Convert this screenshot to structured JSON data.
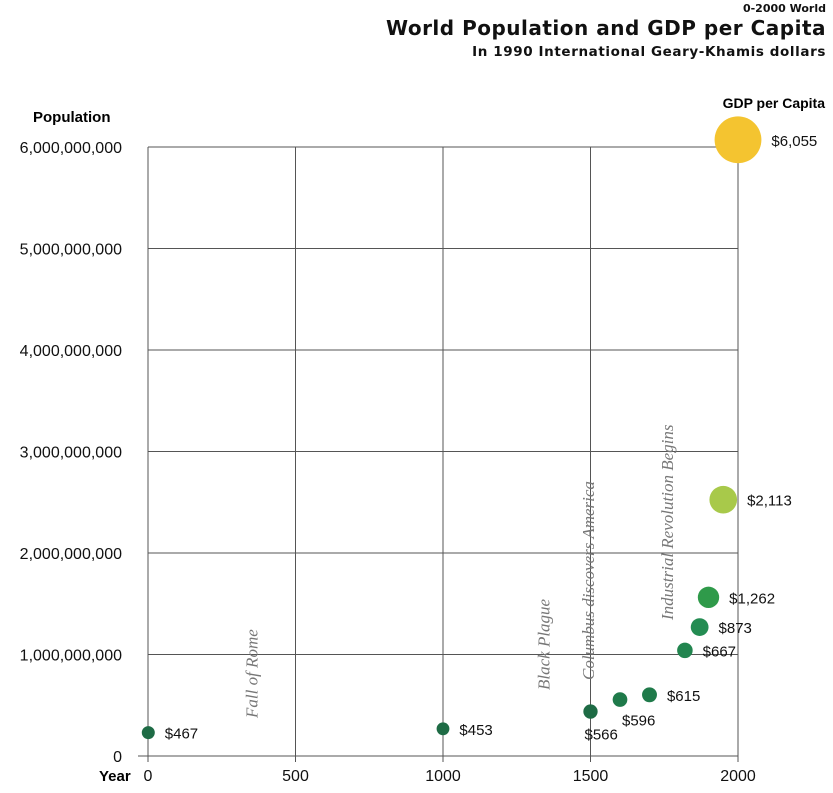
{
  "header": {
    "kicker": "0-2000 World",
    "title": "World Population and GDP per Capita",
    "subtitle": "In 1990 International Geary-Khamis dollars"
  },
  "chart_data": {
    "type": "scatter",
    "title": "World Population and GDP per Capita",
    "subtitle": "In 1990 International Geary-Khamis dollars",
    "xlabel": "Year",
    "ylabel": "Population",
    "size_label": "GDP per Capita",
    "xlim": [
      0,
      2000
    ],
    "ylim": [
      0,
      6000000000
    ],
    "x_ticks": [
      "0",
      "500",
      "1000",
      "1500",
      "2000"
    ],
    "y_ticks": [
      "0",
      "1,000,000,000",
      "2,000,000,000",
      "3,000,000,000",
      "4,000,000,000",
      "5,000,000,000",
      "6,000,000,000"
    ],
    "grid": true,
    "points": [
      {
        "year": 1,
        "population": 230000000,
        "gdp_per_capita": 467,
        "label": "$467",
        "color": "#1e6b45"
      },
      {
        "year": 1000,
        "population": 268000000,
        "gdp_per_capita": 453,
        "label": "$453",
        "color": "#1e6b45"
      },
      {
        "year": 1500,
        "population": 438000000,
        "gdp_per_capita": 566,
        "label": "$566",
        "color": "#1e6b45"
      },
      {
        "year": 1600,
        "population": 556000000,
        "gdp_per_capita": 596,
        "label": "$596",
        "color": "#1f7a4a"
      },
      {
        "year": 1700,
        "population": 603000000,
        "gdp_per_capita": 615,
        "label": "$615",
        "color": "#1f7a4a"
      },
      {
        "year": 1820,
        "population": 1041000000,
        "gdp_per_capita": 667,
        "label": "$667",
        "color": "#22854f"
      },
      {
        "year": 1870,
        "population": 1270000000,
        "gdp_per_capita": 873,
        "label": "$873",
        "color": "#248c52"
      },
      {
        "year": 1900,
        "population": 1563000000,
        "gdp_per_capita": 1262,
        "label": "$1,262",
        "color": "#2f9a4a"
      },
      {
        "year": 1950,
        "population": 2525000000,
        "gdp_per_capita": 2113,
        "label": "$2,113",
        "color": "#a8c94a"
      },
      {
        "year": 2000,
        "population": 6071000000,
        "gdp_per_capita": 6055,
        "label": "$6,055",
        "color": "#f4c430"
      }
    ],
    "annotations": [
      {
        "text": "Fall of Rome",
        "year": 350
      },
      {
        "text": "Black Plague",
        "year": 1340
      },
      {
        "text": "Columbus discovers America",
        "year": 1492
      },
      {
        "text": "Industrial Revolution Begins",
        "year": 1760
      }
    ]
  }
}
